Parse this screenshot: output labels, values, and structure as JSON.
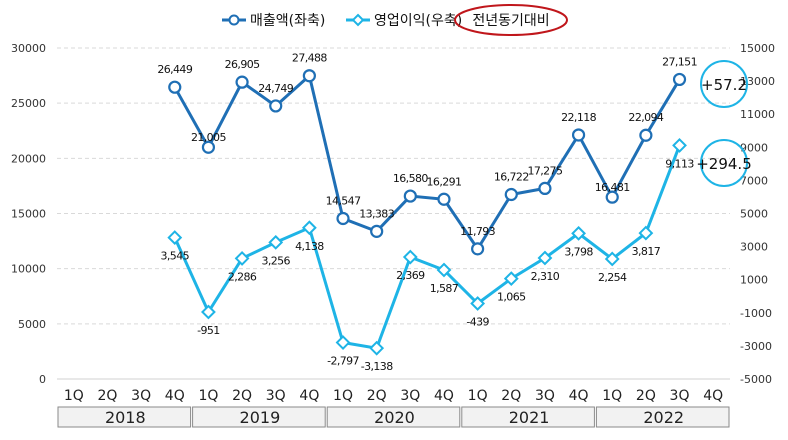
{
  "chart_data": {
    "type": "line",
    "legend": {
      "placement": "top",
      "entries": [
        "매출액(좌축)",
        "영업이익(우축)"
      ],
      "note": "전년동기대비"
    },
    "quarters": [
      "1Q",
      "2Q",
      "3Q",
      "4Q"
    ],
    "years": [
      "2018",
      "2019",
      "2020",
      "2021",
      "2022"
    ],
    "left_axis": {
      "range": [
        0,
        30000
      ],
      "ticks": [
        "0",
        "5000",
        "10000",
        "15000",
        "20000",
        "25000",
        "30000"
      ]
    },
    "right_axis": {
      "range": [
        -5000,
        15000
      ],
      "ticks": [
        "-5000",
        "-3000",
        "-1000",
        "1000",
        "3000",
        "5000",
        "7000",
        "9000",
        "11000",
        "13000",
        "15000"
      ]
    },
    "grid": true,
    "series": [
      {
        "name": "매출액(좌축)",
        "axis": "left",
        "color": "#1f6fb5",
        "marker": "circle",
        "start_index": 3,
        "values": [
          26449,
          21005,
          26905,
          24749,
          27488,
          14547,
          13383,
          16580,
          16291,
          11793,
          16722,
          17275,
          22118,
          16481,
          22094,
          27151
        ],
        "labels": [
          "26,449",
          "21,005",
          "26,905",
          "24,749",
          "27,488",
          "14,547",
          "13,383",
          "16,580",
          "16,291",
          "11,793",
          "16,722",
          "17,275",
          "22,118",
          "16,481",
          "22,094",
          "27,151"
        ]
      },
      {
        "name": "영업이익(우축)",
        "axis": "right",
        "color": "#1eb4e6",
        "marker": "diamond",
        "start_index": 3,
        "values": [
          3545,
          -951,
          2286,
          3256,
          4138,
          -2797,
          -3138,
          2369,
          1587,
          -439,
          1065,
          2310,
          3798,
          2254,
          3817,
          9113
        ],
        "labels": [
          "3,545",
          "-951",
          "2,286",
          "3,256",
          "4,138",
          "-2,797",
          "-3,138",
          "2,369",
          "1,587",
          "-439",
          "1,065",
          "2,310",
          "3,798",
          "2,254",
          "3,817",
          "9,113"
        ]
      }
    ],
    "annotations": [
      {
        "text": "+57.2",
        "series": 0
      },
      {
        "text": "+294.5",
        "series": 1
      }
    ],
    "colors": {
      "note_ellipse": "#c0161b",
      "grid": "#d9d9d9"
    }
  }
}
